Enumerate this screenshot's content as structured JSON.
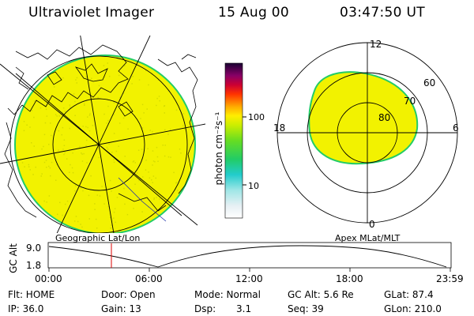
{
  "header": {
    "instrument": "Ultraviolet Imager",
    "date": "15 Aug 00",
    "time": "03:47:50 UT"
  },
  "colorbar": {
    "unit_label": "photon cm⁻²s⁻¹",
    "ticks": [
      {
        "value": 100,
        "label": "100"
      },
      {
        "value": 10,
        "label": "10"
      }
    ],
    "scale": "log"
  },
  "polar_plot": {
    "labels_mlt": {
      "top": "12",
      "left": "18",
      "right": "6",
      "bottom": "0"
    },
    "labels_mlat": [
      "60",
      "70",
      "80"
    ]
  },
  "map_labels": {
    "left": "Geographic Lat/Lon",
    "right": "Apex MLat/MLT"
  },
  "altitude_plot": {
    "ylabel": "GC Alt",
    "yticks": [
      "9.0",
      "1.8"
    ],
    "xticks": [
      "00:00",
      "06:00",
      "12:00",
      "18:00",
      "23:59"
    ],
    "current_time_marker": "03:47:50"
  },
  "info": {
    "flt": "Flt: HOME",
    "ip": "IP: 36.0",
    "door": "Door: Open",
    "gain": "Gain: 13",
    "mode": "Mode: Normal",
    "dsp_label": "Dsp:",
    "dsp_value": "3.1",
    "gc_alt": "GC Alt: 5.6 Re",
    "seq": "Seq: 39",
    "glat": "GLat: 87.4",
    "glon": "GLon: 210.0"
  },
  "colors": {
    "aurora_fill": "#f2f200",
    "aurora_edge": "#22cc66",
    "grid_line": "#000000",
    "time_marker": "#dd0000"
  }
}
